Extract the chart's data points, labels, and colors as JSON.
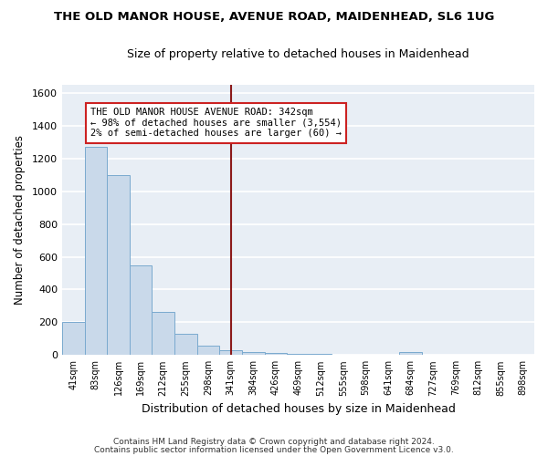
{
  "title": "THE OLD MANOR HOUSE, AVENUE ROAD, MAIDENHEAD, SL6 1UG",
  "subtitle": "Size of property relative to detached houses in Maidenhead",
  "xlabel": "Distribution of detached houses by size in Maidenhead",
  "ylabel": "Number of detached properties",
  "categories": [
    "41sqm",
    "83sqm",
    "126sqm",
    "169sqm",
    "212sqm",
    "255sqm",
    "298sqm",
    "341sqm",
    "384sqm",
    "426sqm",
    "469sqm",
    "512sqm",
    "555sqm",
    "598sqm",
    "641sqm",
    "684sqm",
    "727sqm",
    "769sqm",
    "812sqm",
    "855sqm",
    "898sqm"
  ],
  "values": [
    200,
    1270,
    1100,
    550,
    265,
    130,
    60,
    30,
    20,
    15,
    10,
    5,
    0,
    0,
    0,
    20,
    0,
    0,
    0,
    0,
    0
  ],
  "bar_color": "#c9d9ea",
  "bar_edge_color": "#7aaacf",
  "vline_x_index": 7,
  "vline_color": "#8b1a1a",
  "annotation_title": "THE OLD MANOR HOUSE AVENUE ROAD: 342sqm",
  "annotation_line1": "← 98% of detached houses are smaller (3,554)",
  "annotation_line2": "2% of semi-detached houses are larger (60) →",
  "annotation_box_color": "#ffffff",
  "annotation_edge_color": "#cc2222",
  "ylim": [
    0,
    1650
  ],
  "yticks": [
    0,
    200,
    400,
    600,
    800,
    1000,
    1200,
    1400,
    1600
  ],
  "fig_bg_color": "#ffffff",
  "chart_bg_color": "#e8eef5",
  "grid_color": "#ffffff",
  "footer1": "Contains HM Land Registry data © Crown copyright and database right 2024.",
  "footer2": "Contains public sector information licensed under the Open Government Licence v3.0."
}
